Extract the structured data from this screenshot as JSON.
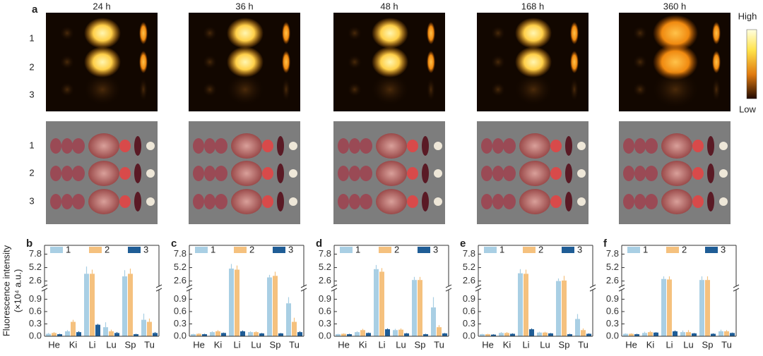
{
  "figure": {
    "panel": "a",
    "times": [
      "24 h",
      "36 h",
      "48 h",
      "168 h",
      "360 h"
    ],
    "rows": [
      "1",
      "2",
      "3"
    ],
    "colorbar": {
      "high": "High",
      "low": "Low"
    }
  },
  "chart_data": [
    {
      "type": "bar",
      "panel": "b",
      "ylabel": [
        "Fluorescence intensity",
        "(×10⁴ a.u.)"
      ],
      "categories": [
        "He",
        "Ki",
        "Li",
        "Lu",
        "Sp",
        "Tu"
      ],
      "series": [
        {
          "name": "1",
          "color": "#a9cfe4",
          "values": [
            0.06,
            0.12,
            4.0,
            0.22,
            3.5,
            0.4
          ],
          "errors": [
            0.02,
            0.03,
            1.4,
            0.12,
            1.2,
            0.15
          ]
        },
        {
          "name": "2",
          "color": "#f5c17e",
          "values": [
            0.08,
            0.35,
            4.0,
            0.12,
            4.0,
            0.35
          ],
          "errors": [
            0.02,
            0.05,
            0.8,
            0.04,
            1.0,
            0.08
          ]
        },
        {
          "name": "3",
          "color": "#1f5d96",
          "values": [
            0.05,
            0.1,
            0.28,
            0.08,
            0.05,
            0.08
          ],
          "errors": [
            0.01,
            0.02,
            0.02,
            0.02,
            0.01,
            0.02
          ]
        }
      ],
      "ylim": [
        0,
        9.5
      ],
      "ybreak": [
        1.13,
        1.6
      ],
      "yticks": [
        {
          "value": 0,
          "label": "0.0"
        },
        0.3,
        0.6,
        0.9,
        2.6,
        5.2,
        7.8
      ]
    },
    {
      "type": "bar",
      "panel": "c",
      "categories": [
        "He",
        "Ki",
        "Li",
        "Lu",
        "Sp",
        "Tu"
      ],
      "series": [
        {
          "name": "1",
          "color": "#a9cfe4",
          "values": [
            0.05,
            0.1,
            5.0,
            0.1,
            3.3,
            0.8
          ],
          "errors": [
            0.01,
            0.02,
            0.9,
            0.02,
            0.5,
            0.15
          ]
        },
        {
          "name": "2",
          "color": "#f5c17e",
          "values": [
            0.06,
            0.12,
            4.8,
            0.1,
            3.6,
            0.35
          ],
          "errors": [
            0.01,
            0.03,
            0.8,
            0.02,
            0.8,
            0.1
          ]
        },
        {
          "name": "3",
          "color": "#1f5d96",
          "values": [
            0.05,
            0.08,
            0.12,
            0.07,
            0.07,
            0.1
          ],
          "errors": [
            0.01,
            0.01,
            0.02,
            0.01,
            0.01,
            0.02
          ]
        }
      ],
      "ylim": [
        0,
        9.5
      ],
      "ybreak": [
        1.13,
        1.6
      ],
      "yticks": [
        {
          "value": 0,
          "label": "0.0"
        },
        0.3,
        0.6,
        0.9,
        2.6,
        5.2,
        7.8
      ]
    },
    {
      "type": "bar",
      "panel": "d",
      "categories": [
        "He",
        "Ki",
        "Li",
        "Lu",
        "Sp",
        "Tu"
      ],
      "series": [
        {
          "name": "1",
          "color": "#a9cfe4",
          "values": [
            0.05,
            0.1,
            4.9,
            0.15,
            2.8,
            0.7
          ],
          "errors": [
            0.01,
            0.02,
            0.8,
            0.03,
            0.6,
            0.25
          ]
        },
        {
          "name": "2",
          "color": "#f5c17e",
          "values": [
            0.06,
            0.15,
            4.4,
            0.16,
            2.8,
            0.22
          ],
          "errors": [
            0.01,
            0.03,
            0.7,
            0.03,
            0.6,
            0.05
          ]
        },
        {
          "name": "3",
          "color": "#1f5d96",
          "values": [
            0.05,
            0.08,
            0.17,
            0.07,
            0.05,
            0.07
          ],
          "errors": [
            0.01,
            0.01,
            0.02,
            0.01,
            0.01,
            0.01
          ]
        }
      ],
      "ylim": [
        0,
        9.5
      ],
      "ybreak": [
        1.13,
        1.6
      ],
      "yticks": [
        {
          "value": 0,
          "label": "0.0"
        },
        0.3,
        0.6,
        0.9,
        2.6,
        5.2,
        7.8
      ]
    },
    {
      "type": "bar",
      "panel": "e",
      "categories": [
        "He",
        "Ki",
        "Li",
        "Lu",
        "Sp",
        "Tu"
      ],
      "series": [
        {
          "name": "1",
          "color": "#a9cfe4",
          "values": [
            0.05,
            0.08,
            4.1,
            0.09,
            2.6,
            0.42
          ],
          "errors": [
            0.01,
            0.02,
            0.8,
            0.02,
            0.5,
            0.12
          ]
        },
        {
          "name": "2",
          "color": "#f5c17e",
          "values": [
            0.05,
            0.08,
            4.0,
            0.09,
            2.7,
            0.15
          ],
          "errors": [
            0.01,
            0.02,
            0.8,
            0.02,
            0.9,
            0.04
          ]
        },
        {
          "name": "3",
          "color": "#1f5d96",
          "values": [
            0.04,
            0.06,
            0.17,
            0.07,
            0.05,
            0.06
          ],
          "errors": [
            0.01,
            0.01,
            0.02,
            0.01,
            0.01,
            0.01
          ]
        }
      ],
      "ylim": [
        0,
        9.5
      ],
      "ybreak": [
        1.13,
        1.6
      ],
      "yticks": [
        {
          "value": 0,
          "label": "0.0"
        },
        0.3,
        0.6,
        0.9,
        2.6,
        5.2,
        7.8
      ]
    },
    {
      "type": "bar",
      "panel": "f",
      "categories": [
        "He",
        "Ki",
        "Li",
        "Lu",
        "Sp",
        "Tu"
      ],
      "series": [
        {
          "name": "1",
          "color": "#a9cfe4",
          "values": [
            0.06,
            0.08,
            3.0,
            0.1,
            2.8,
            0.12
          ],
          "errors": [
            0.01,
            0.03,
            0.5,
            0.04,
            0.7,
            0.04
          ]
        },
        {
          "name": "2",
          "color": "#f5c17e",
          "values": [
            0.06,
            0.1,
            2.9,
            0.1,
            2.8,
            0.12
          ],
          "errors": [
            0.01,
            0.03,
            0.6,
            0.05,
            0.7,
            0.03
          ]
        },
        {
          "name": "3",
          "color": "#1f5d96",
          "values": [
            0.05,
            0.09,
            0.12,
            0.07,
            0.06,
            0.08
          ],
          "errors": [
            0.01,
            0.01,
            0.02,
            0.01,
            0.01,
            0.01
          ]
        }
      ],
      "ylim": [
        0,
        9.5
      ],
      "ybreak": [
        1.13,
        1.6
      ],
      "yticks": [
        {
          "value": 0,
          "label": "0.0"
        },
        0.3,
        0.6,
        0.9,
        2.6,
        5.2,
        7.8
      ]
    }
  ]
}
